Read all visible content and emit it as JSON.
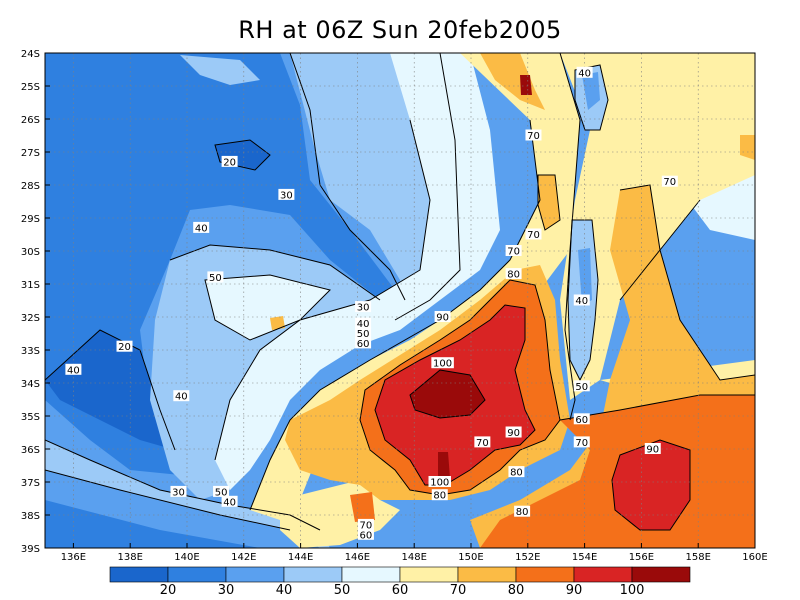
{
  "title": "RH at 06Z Sun 20feb2005",
  "map": {
    "lon_range": [
      135,
      160
    ],
    "lat_range": [
      -39,
      -24
    ],
    "lon_ticks": [
      "136E",
      "138E",
      "140E",
      "142E",
      "144E",
      "146E",
      "148E",
      "150E",
      "152E",
      "154E",
      "156E",
      "158E",
      "160E"
    ],
    "lat_ticks": [
      "24S",
      "25S",
      "26S",
      "27S",
      "28S",
      "29S",
      "30S",
      "31S",
      "32S",
      "33S",
      "34S",
      "35S",
      "36S",
      "37S",
      "38S",
      "39S"
    ],
    "contour_labels": [
      {
        "text": "20",
        "lon": 141.5,
        "lat": -27.3
      },
      {
        "text": "30",
        "lon": 143.5,
        "lat": -28.3
      },
      {
        "text": "40",
        "lon": 140.5,
        "lat": -29.3
      },
      {
        "text": "50",
        "lon": 141.0,
        "lat": -30.8
      },
      {
        "text": "30",
        "lon": 146.2,
        "lat": -31.7
      },
      {
        "text": "40",
        "lon": 146.2,
        "lat": -32.2
      },
      {
        "text": "50",
        "lon": 146.2,
        "lat": -32.5
      },
      {
        "text": "60",
        "lon": 146.2,
        "lat": -32.8
      },
      {
        "text": "90",
        "lon": 149.0,
        "lat": -32.0
      },
      {
        "text": "100",
        "lon": 149.0,
        "lat": -33.4
      },
      {
        "text": "80",
        "lon": 151.5,
        "lat": -30.7
      },
      {
        "text": "70",
        "lon": 151.5,
        "lat": -30.0
      },
      {
        "text": "70",
        "lon": 152.2,
        "lat": -26.5
      },
      {
        "text": "70",
        "lon": 152.2,
        "lat": -29.5
      },
      {
        "text": "40",
        "lon": 154.0,
        "lat": -24.6
      },
      {
        "text": "70",
        "lon": 157.0,
        "lat": -27.9
      },
      {
        "text": "40",
        "lon": 153.9,
        "lat": -31.5
      },
      {
        "text": "50",
        "lon": 153.9,
        "lat": -34.1
      },
      {
        "text": "60",
        "lon": 153.9,
        "lat": -35.1
      },
      {
        "text": "70",
        "lon": 153.9,
        "lat": -35.8
      },
      {
        "text": "90",
        "lon": 151.5,
        "lat": -35.5
      },
      {
        "text": "70",
        "lon": 150.4,
        "lat": -35.8
      },
      {
        "text": "80",
        "lon": 151.6,
        "lat": -36.7
      },
      {
        "text": "90",
        "lon": 156.4,
        "lat": -36.0
      },
      {
        "text": "80",
        "lon": 151.8,
        "lat": -37.9
      },
      {
        "text": "100",
        "lon": 148.9,
        "lat": -37.0
      },
      {
        "text": "80",
        "lon": 148.9,
        "lat": -37.4
      },
      {
        "text": "70",
        "lon": 146.3,
        "lat": -38.3
      },
      {
        "text": "60",
        "lon": 146.3,
        "lat": -38.6
      },
      {
        "text": "50",
        "lon": 141.2,
        "lat": -37.3
      },
      {
        "text": "40",
        "lon": 141.5,
        "lat": -37.6
      },
      {
        "text": "30",
        "lon": 139.7,
        "lat": -37.3
      },
      {
        "text": "40",
        "lon": 139.8,
        "lat": -34.4
      },
      {
        "text": "20",
        "lon": 137.8,
        "lat": -32.9
      },
      {
        "text": "40",
        "lon": 136.0,
        "lat": -33.6
      }
    ]
  },
  "colorbar": {
    "labels": [
      "20",
      "30",
      "40",
      "50",
      "60",
      "70",
      "80",
      "90",
      "100"
    ],
    "colors": [
      "#1a66cc",
      "#2f80e0",
      "#5aa0ef",
      "#9ccaf7",
      "#e6f8ff",
      "#fff1a6",
      "#fbbb45",
      "#f4701a",
      "#d92424",
      "#9a0a0a"
    ]
  }
}
